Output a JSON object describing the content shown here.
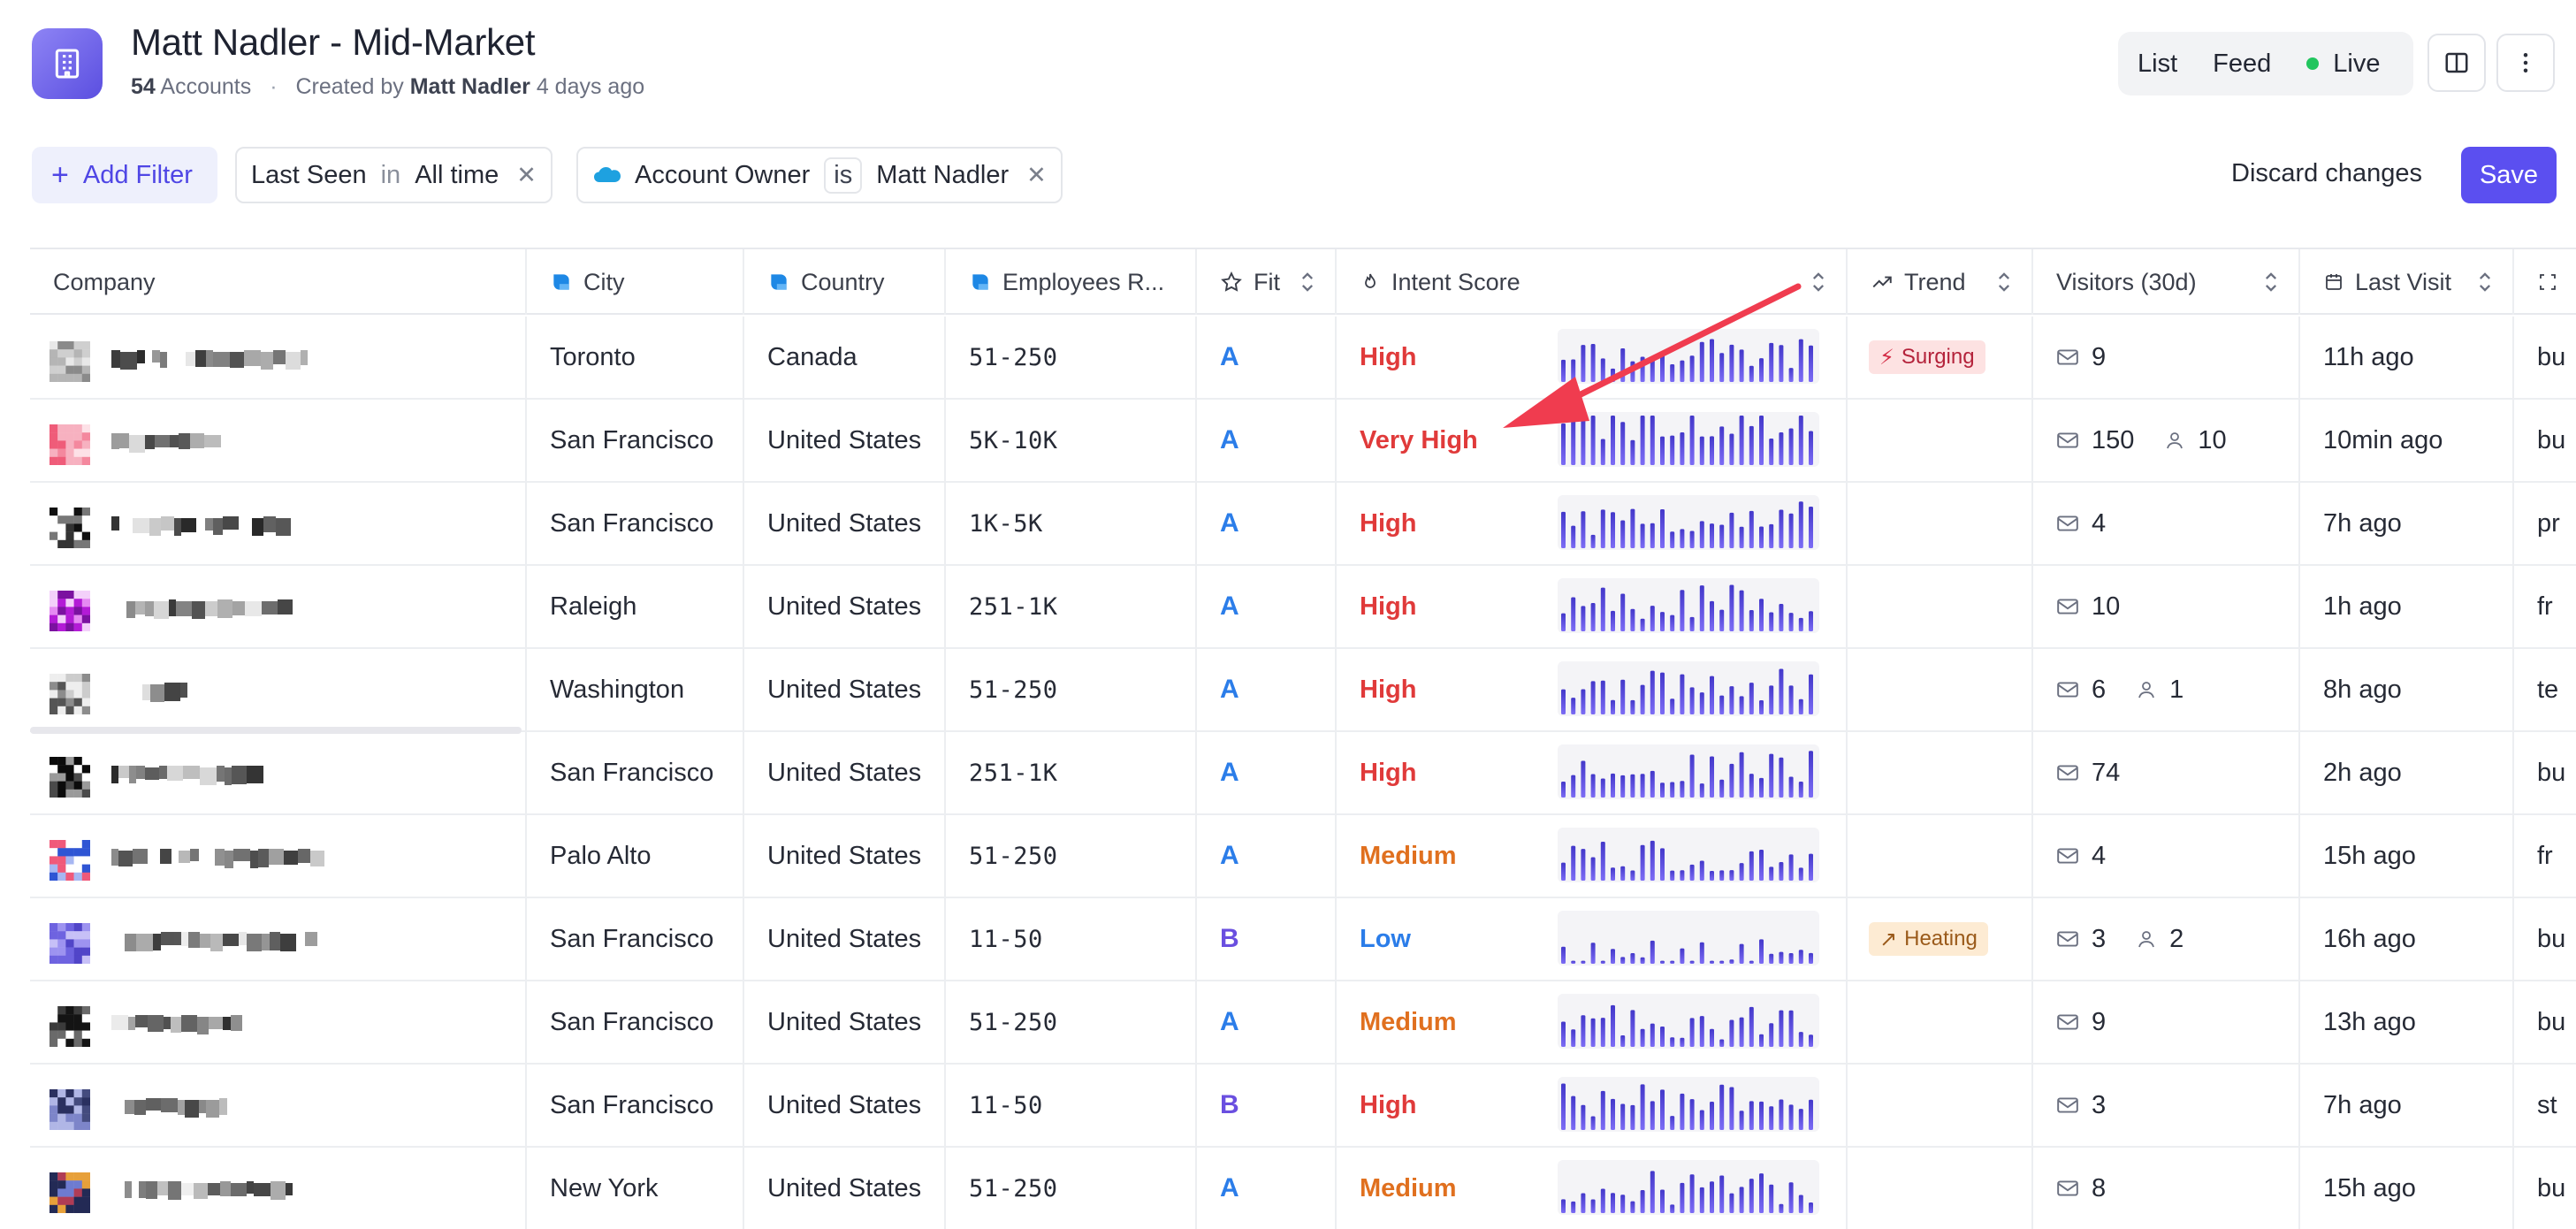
{
  "header": {
    "title": "Matt Nadler - Mid-Market",
    "count": "54",
    "count_label": "Accounts",
    "separator": "·",
    "created_by_label": "Created by",
    "created_by": "Matt Nadler",
    "created_when": "4 days ago",
    "views": [
      "List",
      "Feed",
      "Live"
    ]
  },
  "filters": {
    "add_label": "Add Filter",
    "chip1": {
      "field": "Last Seen",
      "op": "in",
      "value": "All time"
    },
    "chip2": {
      "field": "Account Owner",
      "op": "is",
      "value": "Matt Nadler"
    },
    "discard_label": "Discard changes",
    "save_label": "Save"
  },
  "table": {
    "columns": [
      "Company",
      "City",
      "Country",
      "Employees R...",
      "Fit",
      "Intent Score",
      "Trend",
      "Visitors (30d)",
      "Last Visit"
    ],
    "rows": [
      {
        "city": "Toronto",
        "country": "Canada",
        "employees": "51-250",
        "fit": "A",
        "intent": "High",
        "trend": "Surging",
        "visitors": "9",
        "people": "",
        "last_visit": "11h ago",
        "extra": "bu"
      },
      {
        "city": "San Francisco",
        "country": "United States",
        "employees": "5K-10K",
        "fit": "A",
        "intent": "Very High",
        "trend": "",
        "visitors": "150",
        "people": "10",
        "last_visit": "10min ago",
        "extra": "bu"
      },
      {
        "city": "San Francisco",
        "country": "United States",
        "employees": "1K-5K",
        "fit": "A",
        "intent": "High",
        "trend": "",
        "visitors": "4",
        "people": "",
        "last_visit": "7h ago",
        "extra": "pr"
      },
      {
        "city": "Raleigh",
        "country": "United States",
        "employees": "251-1K",
        "fit": "A",
        "intent": "High",
        "trend": "",
        "visitors": "10",
        "people": "",
        "last_visit": "1h ago",
        "extra": "fr"
      },
      {
        "city": "Washington",
        "country": "United States",
        "employees": "51-250",
        "fit": "A",
        "intent": "High",
        "trend": "",
        "visitors": "6",
        "people": "1",
        "last_visit": "8h ago",
        "extra": "te"
      },
      {
        "city": "San Francisco",
        "country": "United States",
        "employees": "251-1K",
        "fit": "A",
        "intent": "High",
        "trend": "",
        "visitors": "74",
        "people": "",
        "last_visit": "2h ago",
        "extra": "bu"
      },
      {
        "city": "Palo Alto",
        "country": "United States",
        "employees": "51-250",
        "fit": "A",
        "intent": "Medium",
        "trend": "",
        "visitors": "4",
        "people": "",
        "last_visit": "15h ago",
        "extra": "fr"
      },
      {
        "city": "San Francisco",
        "country": "United States",
        "employees": "11-50",
        "fit": "B",
        "intent": "Low",
        "trend": "Heating",
        "visitors": "3",
        "people": "2",
        "last_visit": "16h ago",
        "extra": "bu"
      },
      {
        "city": "San Francisco",
        "country": "United States",
        "employees": "51-250",
        "fit": "A",
        "intent": "Medium",
        "trend": "",
        "visitors": "9",
        "people": "",
        "last_visit": "13h ago",
        "extra": "bu"
      },
      {
        "city": "San Francisco",
        "country": "United States",
        "employees": "11-50",
        "fit": "B",
        "intent": "High",
        "trend": "",
        "visitors": "3",
        "people": "",
        "last_visit": "7h ago",
        "extra": "st"
      },
      {
        "city": "New York",
        "country": "United States",
        "employees": "51-250",
        "fit": "A",
        "intent": "Medium",
        "trend": "",
        "visitors": "8",
        "people": "",
        "last_visit": "15h ago",
        "extra": "bu"
      }
    ]
  },
  "colors": {
    "accent": "#5b4ff0",
    "fit_a": "#2b7de9",
    "fit_b": "#6a4fe0",
    "intent_high": "#e03a3a",
    "intent_medium": "#e0701f",
    "intent_low": "#2b7de9",
    "surging_bg": "#fde2e2",
    "heating_bg": "#fdebd3",
    "live": "#22c55e"
  }
}
